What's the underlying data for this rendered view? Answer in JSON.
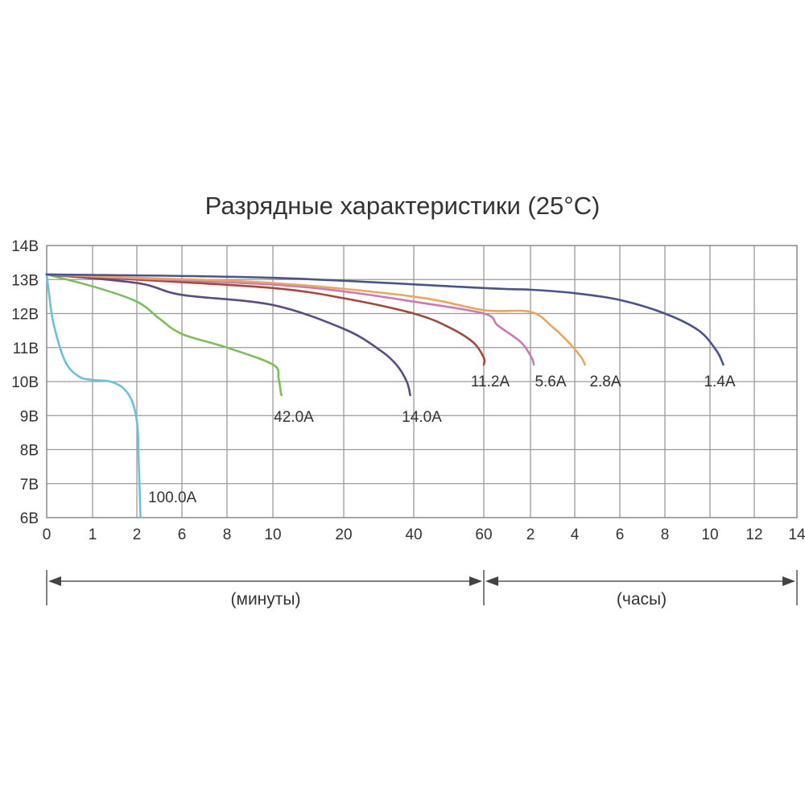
{
  "chart_data": {
    "type": "line",
    "title": "Разрядные характеристики (25°C)",
    "y_ticks": [
      "14В",
      "13В",
      "12В",
      "11В",
      "10В",
      "9В",
      "8В",
      "7В",
      "6В"
    ],
    "ylim": [
      6,
      14
    ],
    "x_ticks": [
      "0",
      "1",
      "2",
      "6",
      "8",
      "10",
      "20",
      "40",
      "60",
      "2",
      "4",
      "6",
      "8",
      "10",
      "12",
      "14"
    ],
    "range_labels": {
      "minutes": "(минуты)",
      "hours": "(часы)"
    },
    "grid": true,
    "series": [
      {
        "name": "100.0A",
        "color": "#6cc0dc",
        "points": [
          [
            0,
            13.15
          ],
          [
            0.05,
            12.6
          ],
          [
            0.15,
            11.7
          ],
          [
            0.4,
            10.6
          ],
          [
            0.7,
            10.15
          ],
          [
            1,
            10.05
          ],
          [
            1.4,
            10.0
          ],
          [
            1.7,
            9.8
          ],
          [
            1.9,
            9.4
          ],
          [
            2.05,
            8.7
          ],
          [
            2.15,
            7.8
          ],
          [
            2.25,
            6.8
          ],
          [
            2.32,
            6.0
          ]
        ]
      },
      {
        "name": "42.0A",
        "color": "#7cbf5a",
        "points": [
          [
            0,
            13.15
          ],
          [
            1,
            12.8
          ],
          [
            2,
            12.35
          ],
          [
            4,
            11.85
          ],
          [
            6,
            11.4
          ],
          [
            8,
            11.0
          ],
          [
            10,
            10.5
          ],
          [
            10.8,
            10.1
          ],
          [
            11.1,
            9.7
          ],
          [
            11.2,
            9.6
          ]
        ]
      },
      {
        "name": "14.0A",
        "color": "#5c4a84",
        "points": [
          [
            0,
            13.15
          ],
          [
            2,
            12.9
          ],
          [
            6,
            12.55
          ],
          [
            10,
            12.25
          ],
          [
            20,
            11.55
          ],
          [
            30,
            10.95
          ],
          [
            35,
            10.5
          ],
          [
            38,
            10.0
          ],
          [
            39,
            9.6
          ]
        ]
      },
      {
        "name": "11.2A",
        "color": "#a3483d",
        "points": [
          [
            0,
            13.15
          ],
          [
            2,
            13.0
          ],
          [
            10,
            12.75
          ],
          [
            20,
            12.45
          ],
          [
            40,
            12.0
          ],
          [
            50,
            11.6
          ],
          [
            57,
            11.15
          ],
          [
            60,
            10.7
          ],
          [
            60.6,
            10.5
          ]
        ]
      },
      {
        "name": "5.6A",
        "color": "#cc78b6",
        "points": [
          [
            0,
            13.15
          ],
          [
            2,
            13.03
          ],
          [
            10,
            12.85
          ],
          [
            20,
            12.65
          ],
          [
            40,
            12.35
          ],
          [
            60,
            12.0
          ],
          [
            1.3,
            11.65
          ],
          [
            1.8,
            11.15
          ],
          [
            2.05,
            10.7
          ],
          [
            2.15,
            10.5
          ]
        ]
      },
      {
        "name": "2.8A",
        "color": "#eba65a",
        "points": [
          [
            0,
            13.15
          ],
          [
            2,
            13.05
          ],
          [
            10,
            12.9
          ],
          [
            40,
            12.5
          ],
          [
            60,
            12.1
          ],
          [
            2,
            12.05
          ],
          [
            3,
            11.6
          ],
          [
            3.8,
            11.1
          ],
          [
            4.3,
            10.7
          ],
          [
            4.45,
            10.5
          ]
        ]
      },
      {
        "name": "1.4A",
        "color": "#48558c",
        "points": [
          [
            0,
            13.15
          ],
          [
            10,
            13.05
          ],
          [
            60,
            12.75
          ],
          [
            2,
            12.7
          ],
          [
            4,
            12.6
          ],
          [
            6,
            12.4
          ],
          [
            8,
            12.0
          ],
          [
            9.5,
            11.5
          ],
          [
            10.3,
            10.9
          ],
          [
            10.6,
            10.5
          ]
        ]
      }
    ]
  }
}
